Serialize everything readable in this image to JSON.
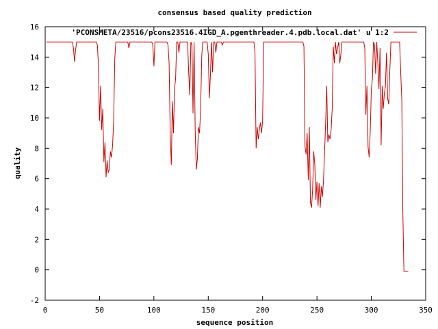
{
  "chart_data": {
    "type": "line",
    "title": "consensus based quality prediction",
    "xlabel": "sequence position",
    "ylabel": "quality",
    "xlim": [
      0,
      350
    ],
    "ylim": [
      -2,
      16
    ],
    "x_ticks": [
      0,
      50,
      100,
      150,
      200,
      250,
      300,
      350
    ],
    "y_ticks": [
      -2,
      0,
      2,
      4,
      6,
      8,
      10,
      12,
      14,
      16
    ],
    "grid": false,
    "legend_position": "top-right",
    "series": [
      {
        "name": "'PCONSMETA/23516/pcons23516.4IGD_A.pgenthreader.4.pdb.local.dat' u 1:2",
        "color": "#cc0000",
        "points": [
          [
            1,
            15
          ],
          [
            25,
            15
          ],
          [
            26,
            14.6
          ],
          [
            27,
            13.7
          ],
          [
            28,
            14.5
          ],
          [
            29,
            15
          ],
          [
            47,
            15
          ],
          [
            48,
            14.8
          ],
          [
            49,
            13.5
          ],
          [
            50,
            9.8
          ],
          [
            51,
            12.1
          ],
          [
            52,
            9.2
          ],
          [
            53,
            10.6
          ],
          [
            54,
            7.1
          ],
          [
            55,
            8.4
          ],
          [
            56,
            6.1
          ],
          [
            57,
            7.2
          ],
          [
            58,
            6.4
          ],
          [
            59,
            6.6
          ],
          [
            60,
            7.8
          ],
          [
            61,
            7.4
          ],
          [
            62,
            8.2
          ],
          [
            63,
            9.8
          ],
          [
            64,
            13.9
          ],
          [
            65,
            15
          ],
          [
            76,
            15
          ],
          [
            77,
            14.6
          ],
          [
            78,
            15
          ],
          [
            98,
            15
          ],
          [
            99,
            14.8
          ],
          [
            100,
            13.4
          ],
          [
            101,
            15
          ],
          [
            112,
            15
          ],
          [
            113,
            14.8
          ],
          [
            114,
            13.6
          ],
          [
            115,
            9.0
          ],
          [
            116,
            6.9
          ],
          [
            117,
            11.1
          ],
          [
            118,
            9.0
          ],
          [
            119,
            11.9
          ],
          [
            120,
            12.6
          ],
          [
            121,
            15
          ],
          [
            122,
            15
          ],
          [
            123,
            14.3
          ],
          [
            124,
            15
          ],
          [
            131,
            15
          ],
          [
            132,
            13.0
          ],
          [
            133,
            11.5
          ],
          [
            134,
            15
          ],
          [
            135,
            14.8
          ],
          [
            136,
            10.3
          ],
          [
            137,
            15
          ],
          [
            138,
            9.2
          ],
          [
            139,
            6.6
          ],
          [
            140,
            7.3
          ],
          [
            141,
            9.4
          ],
          [
            142,
            9.0
          ],
          [
            143,
            10.7
          ],
          [
            144,
            14.1
          ],
          [
            145,
            15
          ],
          [
            149,
            15
          ],
          [
            150,
            14.2
          ],
          [
            151,
            11.3
          ],
          [
            152,
            12.9
          ],
          [
            153,
            15
          ],
          [
            154,
            13.0
          ],
          [
            155,
            15
          ],
          [
            156,
            15
          ],
          [
            157,
            14.3
          ],
          [
            158,
            15
          ],
          [
            162,
            15
          ],
          [
            163,
            14.8
          ],
          [
            164,
            15
          ],
          [
            192,
            15
          ],
          [
            193,
            14.3
          ],
          [
            194,
            8.0
          ],
          [
            195,
            9.4
          ],
          [
            196,
            8.6
          ],
          [
            197,
            9.2
          ],
          [
            198,
            9.7
          ],
          [
            199,
            9.0
          ],
          [
            200,
            9.8
          ],
          [
            201,
            15
          ],
          [
            237,
            15
          ],
          [
            238,
            14.7
          ],
          [
            239,
            8.1
          ],
          [
            240,
            7.6
          ],
          [
            241,
            9.0
          ],
          [
            242,
            5.9
          ],
          [
            243,
            9.4
          ],
          [
            244,
            4.4
          ],
          [
            245,
            4.1
          ],
          [
            246,
            5.3
          ],
          [
            247,
            7.8
          ],
          [
            248,
            6.9
          ],
          [
            249,
            4.6
          ],
          [
            250,
            5.8
          ],
          [
            251,
            4.2
          ],
          [
            252,
            5.7
          ],
          [
            253,
            4.1
          ],
          [
            254,
            5.5
          ],
          [
            255,
            4.8
          ],
          [
            256,
            5.9
          ],
          [
            257,
            7.8
          ],
          [
            258,
            9.8
          ],
          [
            259,
            12.1
          ],
          [
            260,
            8.4
          ],
          [
            261,
            8.9
          ],
          [
            262,
            8.6
          ],
          [
            263,
            9.2
          ],
          [
            264,
            10.6
          ],
          [
            265,
            14.7
          ],
          [
            266,
            13.6
          ],
          [
            267,
            15
          ],
          [
            268,
            14.2
          ],
          [
            269,
            14.6
          ],
          [
            270,
            15
          ],
          [
            271,
            13.6
          ],
          [
            272,
            14.2
          ],
          [
            273,
            15
          ],
          [
            293,
            15
          ],
          [
            294,
            14.6
          ],
          [
            295,
            10.2
          ],
          [
            296,
            12.1
          ],
          [
            297,
            8.1
          ],
          [
            298,
            7.4
          ],
          [
            299,
            9.1
          ],
          [
            300,
            11.9
          ],
          [
            301,
            12.6
          ],
          [
            302,
            15
          ],
          [
            303,
            14.8
          ],
          [
            304,
            12.9
          ],
          [
            305,
            15
          ],
          [
            306,
            13.6
          ],
          [
            307,
            11.9
          ],
          [
            308,
            14.6
          ],
          [
            309,
            8.2
          ],
          [
            310,
            12.1
          ],
          [
            311,
            10.6
          ],
          [
            312,
            11.6
          ],
          [
            313,
            12.1
          ],
          [
            314,
            14.3
          ],
          [
            315,
            11.3
          ],
          [
            316,
            10.9
          ],
          [
            317,
            13.1
          ],
          [
            318,
            15
          ],
          [
            326,
            15
          ],
          [
            327,
            13.0
          ],
          [
            328,
            11.2
          ],
          [
            329,
            3.9
          ],
          [
            330,
            -0.1
          ],
          [
            334,
            -0.1
          ]
        ]
      }
    ]
  }
}
